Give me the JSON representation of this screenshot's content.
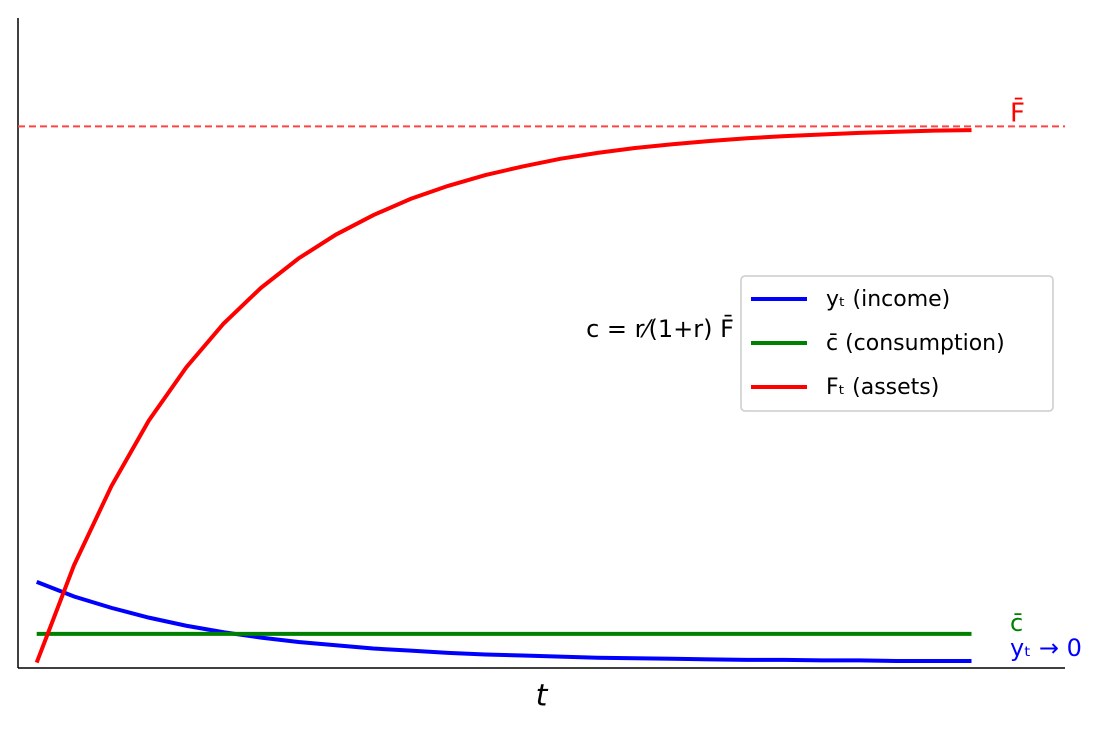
{
  "chart_data": {
    "type": "line",
    "xlabel": "t",
    "x": [
      0,
      2,
      4,
      6,
      8,
      10,
      12,
      14,
      16,
      18,
      20,
      22,
      24,
      26,
      28,
      30,
      32,
      34,
      36,
      38,
      40,
      42,
      44,
      46,
      48,
      50
    ],
    "xlim": [
      -1,
      55
    ],
    "ylim": [
      0,
      1.2
    ],
    "series": [
      {
        "name": "yₜ (income)",
        "color": "#0000ff",
        "values": [
          0.159,
          0.132,
          0.111,
          0.093,
          0.078,
          0.066,
          0.056,
          0.048,
          0.042,
          0.036,
          0.032,
          0.028,
          0.025,
          0.023,
          0.021,
          0.019,
          0.018,
          0.017,
          0.016,
          0.015,
          0.015,
          0.014,
          0.014,
          0.013,
          0.013,
          0.013
        ]
      },
      {
        "name": "c̄ (consumption)",
        "color": "#008000",
        "values": [
          0.063,
          0.063,
          0.063,
          0.063,
          0.063,
          0.063,
          0.063,
          0.063,
          0.063,
          0.063,
          0.063,
          0.063,
          0.063,
          0.063,
          0.063,
          0.063,
          0.063,
          0.063,
          0.063,
          0.063,
          0.063,
          0.063,
          0.063,
          0.063,
          0.063,
          0.063
        ]
      },
      {
        "name": "Fₜ (assets)",
        "color": "#ff0000",
        "values": [
          0.01,
          0.19,
          0.336,
          0.457,
          0.555,
          0.636,
          0.702,
          0.756,
          0.8,
          0.836,
          0.866,
          0.89,
          0.91,
          0.926,
          0.94,
          0.951,
          0.96,
          0.967,
          0.973,
          0.978,
          0.982,
          0.985,
          0.988,
          0.99,
          0.992,
          0.993
        ]
      }
    ],
    "hline": {
      "value": 1,
      "color": "#ff4444",
      "style": "dashed"
    },
    "annotations": [
      {
        "text": "F̄",
        "color": "#ff0000"
      },
      {
        "text": "c̄",
        "color": "#008000"
      },
      {
        "text": "yₜ → 0",
        "color": "#0000ff"
      },
      {
        "text": "c = r⁄(1+r) F̄",
        "color": "#000000"
      }
    ],
    "legend": "right"
  }
}
